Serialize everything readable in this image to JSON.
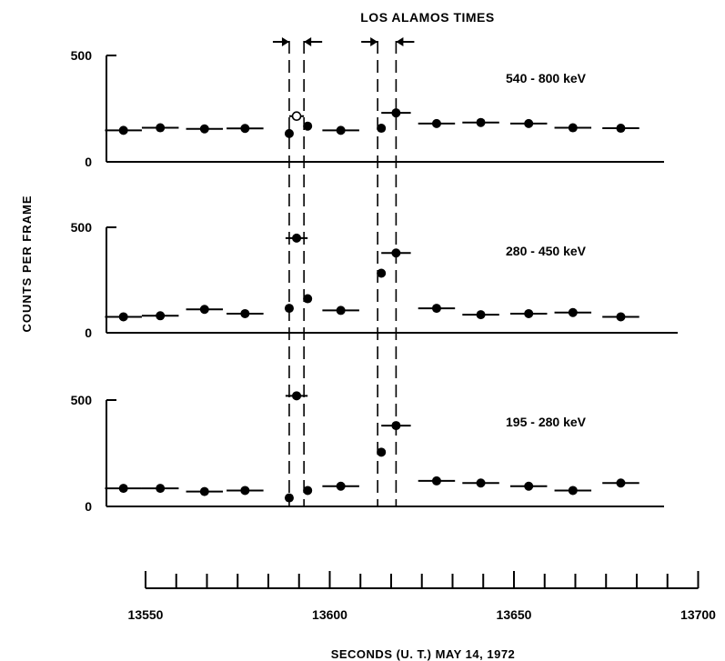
{
  "chart_data": {
    "type": "scatter",
    "title": "LOS ALAMOS TIMES",
    "ylabel": "COUNTS PER FRAME",
    "xlabel": "SECONDS (U. T.) MAY 14, 1972",
    "x_ticks": [
      "13550",
      "13600",
      "13650",
      "13700"
    ],
    "xlim": [
      13535,
      13700
    ],
    "ylim": [
      0,
      500
    ],
    "y_ticks": [
      "0",
      "500"
    ],
    "grid": false,
    "los_alamos_times": [
      13589,
      13593,
      13613,
      13618
    ],
    "panels": [
      {
        "label": "540 - 800 keV",
        "points": [
          {
            "x": 13544,
            "y": 148,
            "dx": 5
          },
          {
            "x": 13554,
            "y": 160,
            "dx": 5
          },
          {
            "x": 13566,
            "y": 155,
            "dx": 5
          },
          {
            "x": 13577,
            "y": 157,
            "dx": 5
          },
          {
            "x": 13589,
            "y": 133,
            "dx": 0
          },
          {
            "x": 13591,
            "y": 215,
            "dx": 2,
            "open": true
          },
          {
            "x": 13594,
            "y": 168,
            "dx": 0
          },
          {
            "x": 13603,
            "y": 148,
            "dx": 5
          },
          {
            "x": 13614,
            "y": 158,
            "dx": 0
          },
          {
            "x": 13618,
            "y": 230,
            "dx": 4
          },
          {
            "x": 13629,
            "y": 180,
            "dx": 5
          },
          {
            "x": 13641,
            "y": 185,
            "dx": 5
          },
          {
            "x": 13654,
            "y": 180,
            "dx": 5
          },
          {
            "x": 13666,
            "y": 160,
            "dx": 5
          },
          {
            "x": 13679,
            "y": 158,
            "dx": 5
          }
        ]
      },
      {
        "label": "280 - 450 keV",
        "points": [
          {
            "x": 13544,
            "y": 75,
            "dx": 5
          },
          {
            "x": 13554,
            "y": 80,
            "dx": 5
          },
          {
            "x": 13566,
            "y": 110,
            "dx": 5
          },
          {
            "x": 13577,
            "y": 90,
            "dx": 5
          },
          {
            "x": 13589,
            "y": 115,
            "dx": 0
          },
          {
            "x": 13591,
            "y": 445,
            "dx": 3
          },
          {
            "x": 13594,
            "y": 160,
            "dx": 0
          },
          {
            "x": 13603,
            "y": 105,
            "dx": 5
          },
          {
            "x": 13614,
            "y": 280,
            "dx": 0
          },
          {
            "x": 13618,
            "y": 375,
            "dx": 4
          },
          {
            "x": 13629,
            "y": 115,
            "dx": 5
          },
          {
            "x": 13641,
            "y": 85,
            "dx": 5
          },
          {
            "x": 13654,
            "y": 90,
            "dx": 5
          },
          {
            "x": 13666,
            "y": 95,
            "dx": 5
          },
          {
            "x": 13679,
            "y": 75,
            "dx": 5
          }
        ]
      },
      {
        "label": "195 - 280 keV",
        "points": [
          {
            "x": 13544,
            "y": 85,
            "dx": 5
          },
          {
            "x": 13554,
            "y": 85,
            "dx": 5
          },
          {
            "x": 13566,
            "y": 70,
            "dx": 5
          },
          {
            "x": 13577,
            "y": 75,
            "dx": 5
          },
          {
            "x": 13589,
            "y": 40,
            "dx": 0
          },
          {
            "x": 13591,
            "y": 520,
            "dx": 3
          },
          {
            "x": 13594,
            "y": 75,
            "dx": 0
          },
          {
            "x": 13603,
            "y": 95,
            "dx": 5
          },
          {
            "x": 13614,
            "y": 255,
            "dx": 0
          },
          {
            "x": 13618,
            "y": 380,
            "dx": 4
          },
          {
            "x": 13629,
            "y": 120,
            "dx": 5
          },
          {
            "x": 13641,
            "y": 110,
            "dx": 5
          },
          {
            "x": 13654,
            "y": 95,
            "dx": 5
          },
          {
            "x": 13666,
            "y": 75,
            "dx": 5
          },
          {
            "x": 13679,
            "y": 110,
            "dx": 5
          }
        ]
      }
    ]
  }
}
